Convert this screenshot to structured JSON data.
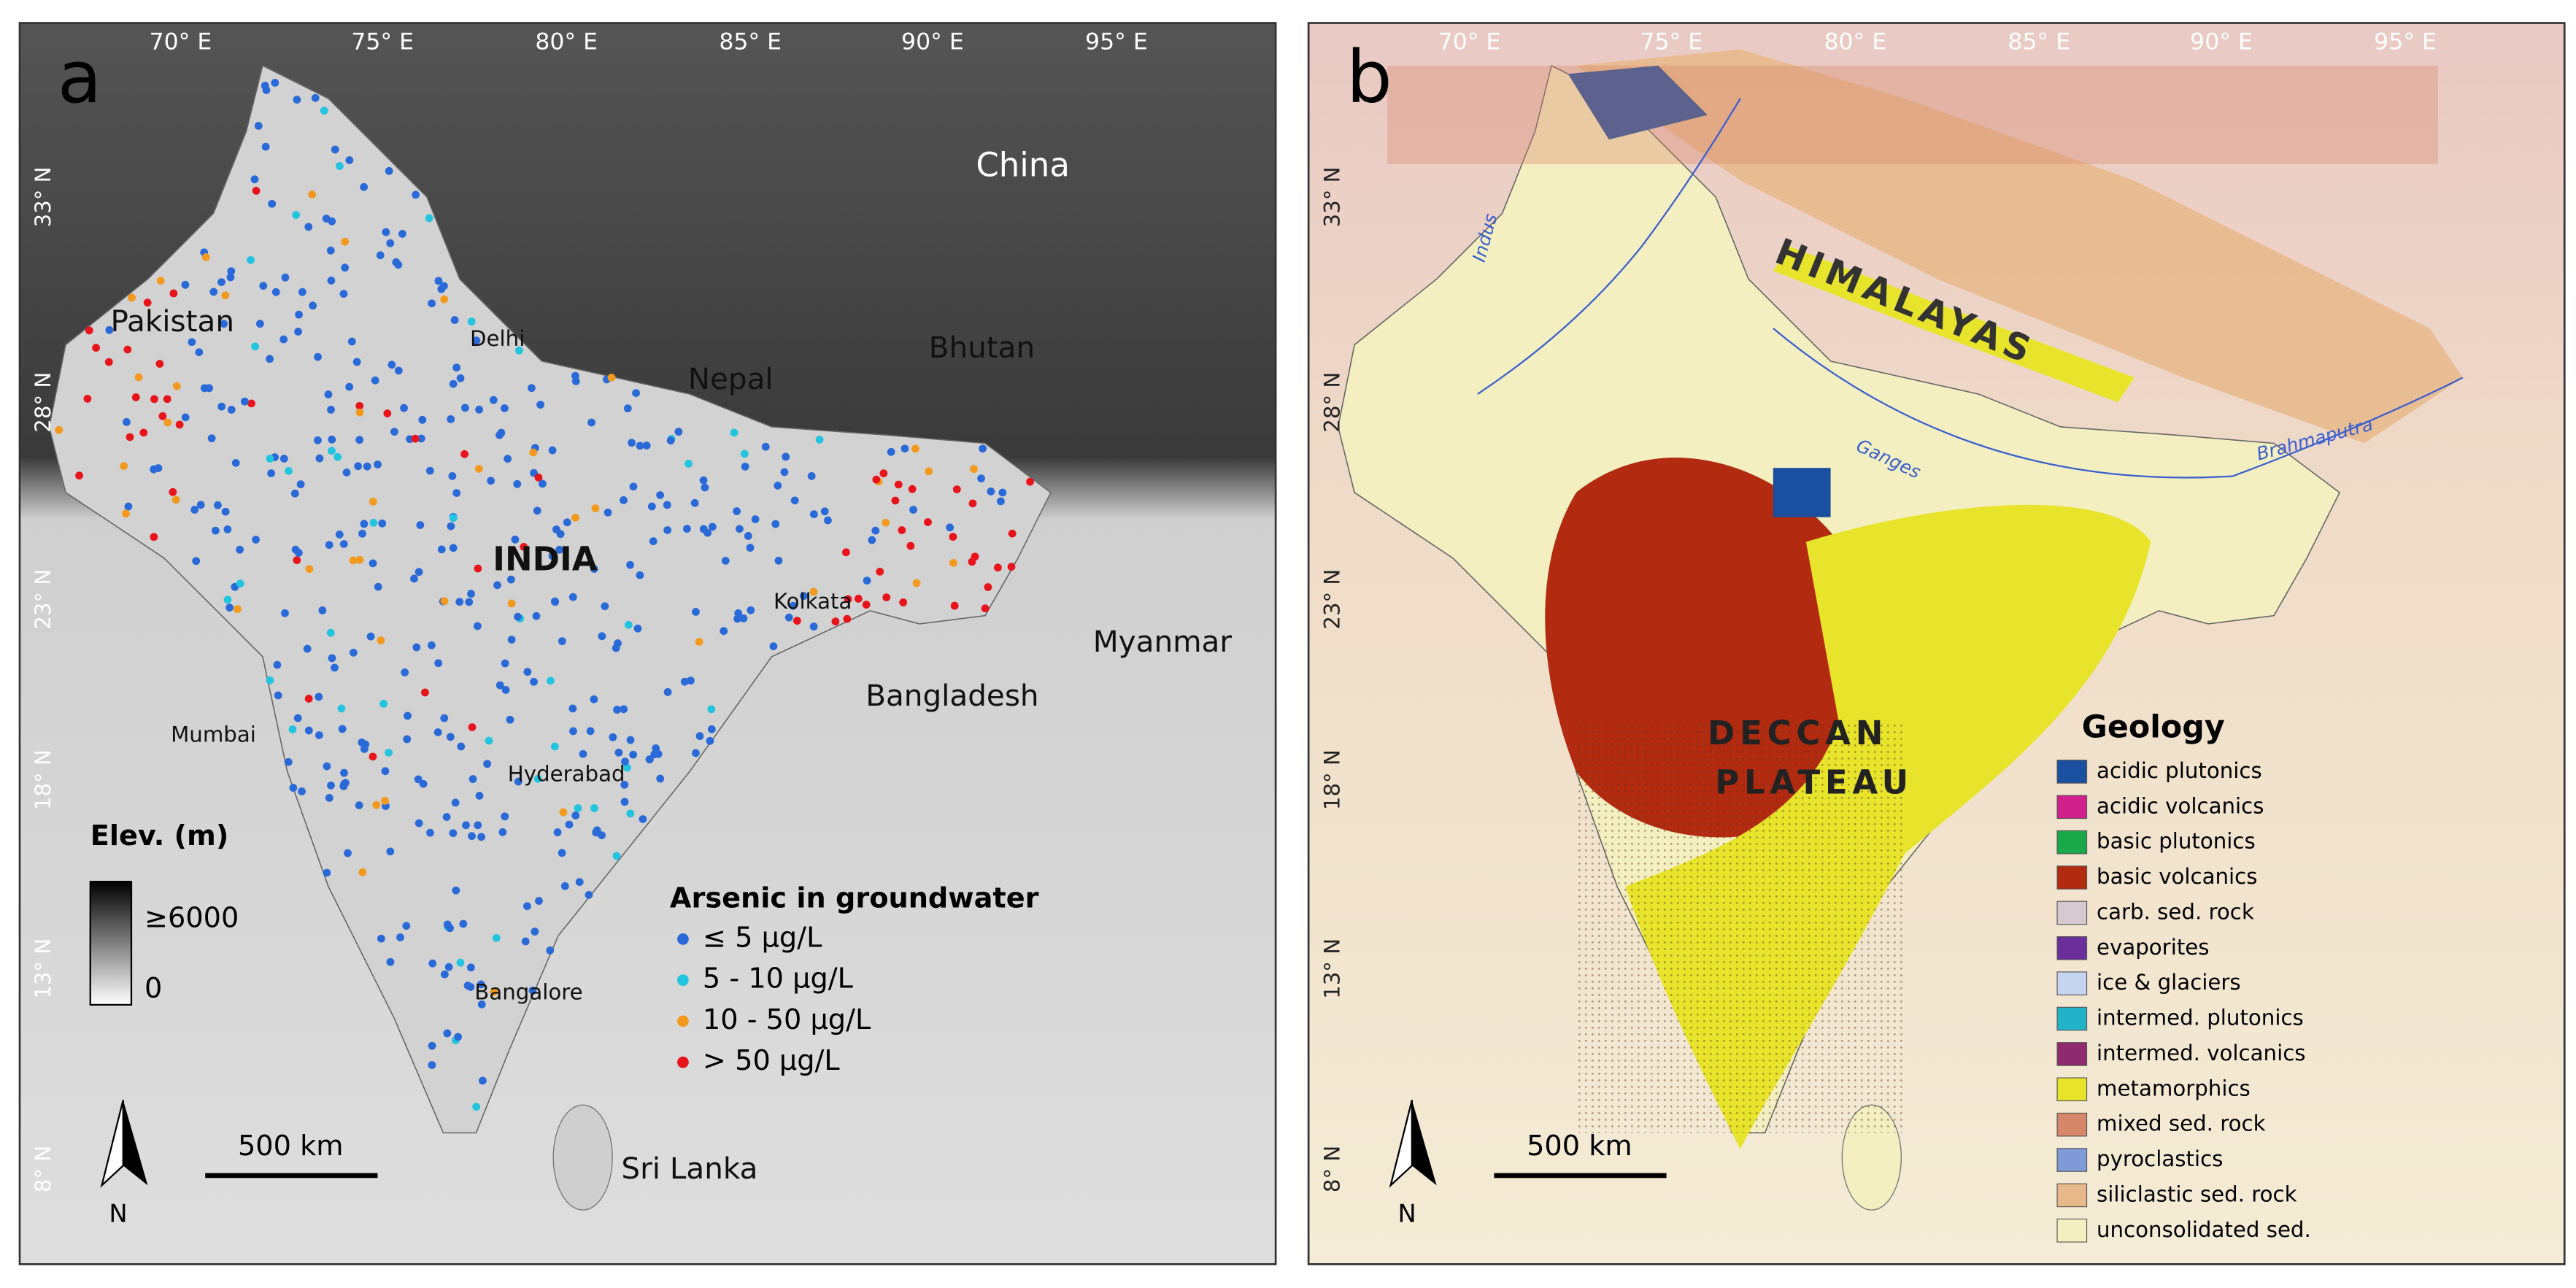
{
  "panels": [
    {
      "label": "a",
      "lon_ticks": [
        "70° E",
        "75° E",
        "80° E",
        "85° E",
        "90° E",
        "95° E"
      ],
      "lat_ticks": [
        "33° N",
        "28° N",
        "23° N",
        "18° N",
        "13° N",
        "8° N"
      ],
      "places": [
        "China",
        "Pakistan",
        "Bhutan",
        "Nepal",
        "INDIA",
        "Delhi",
        "Kolkata",
        "Bangladesh",
        "Myanmar",
        "Mumbai",
        "Hyderabad",
        "Bangalore",
        "Sri Lanka"
      ],
      "elevation_legend": {
        "title": "Elev. (m)",
        "high": "≥6000",
        "low": "0"
      },
      "arsenic_legend": {
        "title": "Arsenic in groundwater",
        "items": [
          {
            "label": "≤ 5 µg/L",
            "color": "#2a6ad8"
          },
          {
            "label": "5 - 10 µg/L",
            "color": "#22c4e0"
          },
          {
            "label": "10 - 50 µg/L",
            "color": "#f39a1e"
          },
          {
            "label": "> 50 µg/L",
            "color": "#e8141c"
          }
        ]
      },
      "scale_bar": "500 km",
      "north": "N"
    },
    {
      "label": "b",
      "lon_ticks": [
        "70° E",
        "75° E",
        "80° E",
        "85° E",
        "90° E",
        "95° E"
      ],
      "lat_ticks": [
        "33° N",
        "28° N",
        "23° N",
        "18° N",
        "13° N",
        "8° N"
      ],
      "annotations": [
        "HIMALAYAS",
        "DECCAN",
        "PLATEAU",
        "Indus",
        "Ganges",
        "Brahmaputra"
      ],
      "geology_legend": {
        "title": "Geology",
        "items": [
          {
            "label": "acidic plutonics",
            "color": "#1b4fa0"
          },
          {
            "label": "acidic volcanics",
            "color": "#d0208c"
          },
          {
            "label": "basic plutonics",
            "color": "#1aa84a"
          },
          {
            "label": "basic volcanics",
            "color": "#b22a10"
          },
          {
            "label": "carb. sed. rock",
            "color": "#d6c9cf"
          },
          {
            "label": "evaporites",
            "color": "#6a2f9a"
          },
          {
            "label": "ice & glaciers",
            "color": "#c5d5f0"
          },
          {
            "label": "intermed. plutonics",
            "color": "#22b3c8"
          },
          {
            "label": "intermed. volcanics",
            "color": "#8e2a6e"
          },
          {
            "label": "metamorphics",
            "color": "#e7e42b"
          },
          {
            "label": "mixed sed. rock",
            "color": "#d6876a"
          },
          {
            "label": "pyroclastics",
            "color": "#7f9ad6"
          },
          {
            "label": "siliclastic sed. rock",
            "color": "#e7b98a"
          },
          {
            "label": "unconsolidated sed.",
            "color": "#f3efc0"
          }
        ]
      },
      "scale_bar": "500 km",
      "north": "N"
    }
  ]
}
